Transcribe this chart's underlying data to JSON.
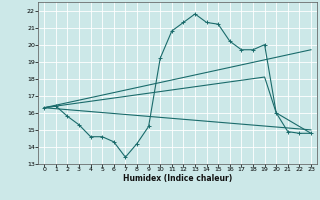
{
  "xlabel": "Humidex (Indice chaleur)",
  "xlim": [
    -0.5,
    23.5
  ],
  "ylim": [
    13,
    22.5
  ],
  "yticks": [
    13,
    14,
    15,
    16,
    17,
    18,
    19,
    20,
    21,
    22
  ],
  "xticks": [
    0,
    1,
    2,
    3,
    4,
    5,
    6,
    7,
    8,
    9,
    10,
    11,
    12,
    13,
    14,
    15,
    16,
    17,
    18,
    19,
    20,
    21,
    22,
    23
  ],
  "bg_color": "#cce8e8",
  "grid_color": "#ffffff",
  "line_color": "#1a6b6b",
  "lines": [
    {
      "x": [
        0,
        1,
        2,
        3,
        4,
        5,
        6,
        7,
        8,
        9,
        10,
        11,
        12,
        13,
        14,
        15,
        16,
        17,
        18,
        19,
        20,
        21,
        22,
        23
      ],
      "y": [
        16.3,
        16.4,
        15.8,
        15.3,
        14.6,
        14.6,
        14.3,
        13.4,
        14.2,
        15.2,
        19.2,
        20.8,
        21.3,
        21.8,
        21.3,
        21.2,
        20.2,
        19.7,
        19.7,
        20.0,
        16.0,
        14.9,
        14.8,
        14.8
      ],
      "has_marker": true
    },
    {
      "x": [
        0,
        23
      ],
      "y": [
        16.3,
        19.7
      ],
      "has_marker": false
    },
    {
      "x": [
        0,
        23
      ],
      "y": [
        16.3,
        15.0
      ],
      "has_marker": false
    },
    {
      "x": [
        0,
        19,
        20,
        23
      ],
      "y": [
        16.3,
        18.1,
        16.0,
        14.8
      ],
      "has_marker": false
    }
  ]
}
